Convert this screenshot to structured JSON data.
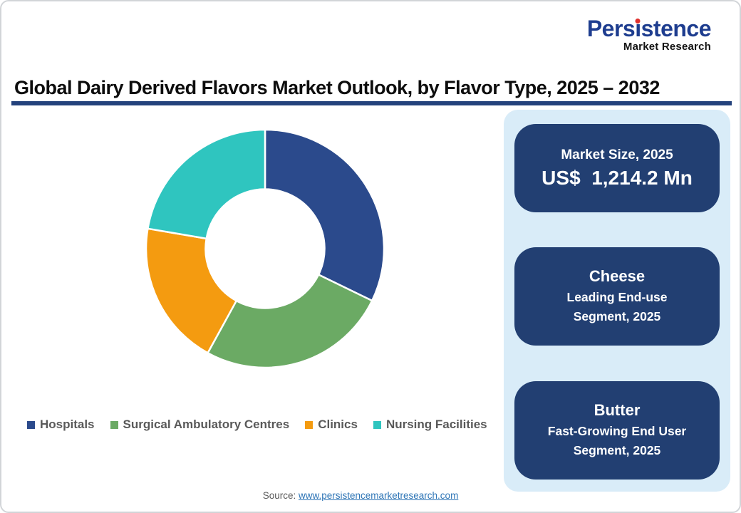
{
  "page": {
    "title": "Global Dairy Derived Flavors Market Outlook, by Flavor Type, 2025 – 2032",
    "source_label": "Source:",
    "source_link": "www.persistencemarketresearch.com",
    "colors": {
      "title_underline": "#24427C",
      "link_blue": "#2E75B6",
      "legend_text": "#595959"
    }
  },
  "logo": {
    "brand": "Persistence",
    "subtitle": "Market Research",
    "brand_color": "#1E3D8F",
    "dot_color": "#E0312E"
  },
  "info_panel": {
    "background": "#D9ECF8",
    "box_color": "#223F72",
    "boxes": [
      {
        "line1": "Market Size, 2025",
        "line2": "US$  1,214.2 Mn"
      },
      {
        "title": "Cheese",
        "line1": "Leading End-use",
        "line2": "Segment, 2025"
      },
      {
        "title": "Butter",
        "line1": "Fast-Growing End User",
        "line2": "Segment, 2025"
      }
    ]
  },
  "chart_data": {
    "type": "pie",
    "subtype": "donut",
    "title": "Global Dairy Derived Flavors Market Outlook, by Flavor Type, 2025 – 2032",
    "labels": [
      "Hospitals",
      "Surgical Ambulatory Centres",
      "Clinics",
      "Nursing Facilities"
    ],
    "values": [
      32.2,
      25.8,
      19.7,
      22.3
    ],
    "unit": "percent share (estimated from arc angles; no data labels shown in image)",
    "colors": [
      "#2B4A8C",
      "#6BAA64",
      "#F49B10",
      "#2FC5BF"
    ],
    "donut_hole_ratio": 0.5,
    "start_angle_deg": 0,
    "direction": "clockwise",
    "separator_color": "#FFFFFF",
    "legend_position": "bottom"
  }
}
